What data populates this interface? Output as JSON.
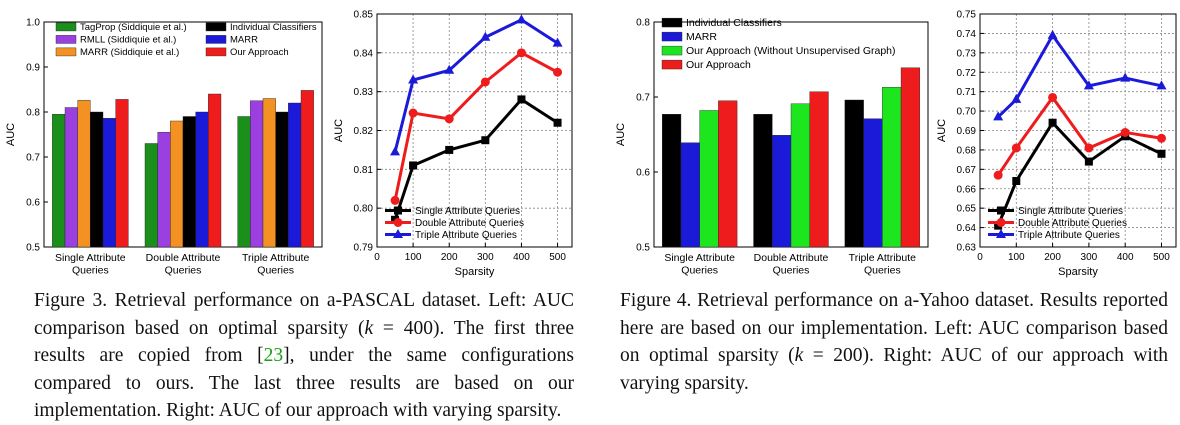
{
  "figures": [
    {
      "caption": {
        "lead": "Figure 3. Retrieval performance on a-PASCAL dataset. Left: AUC comparison based on optimal sparsity (",
        "k_sym": "k",
        "k_val": " = 400). The first three results are copied from [",
        "cite": "23",
        "rest": "], under the same configurations compared to ours. The last three results are based on our implementation. Right: AUC of our approach with varying sparsity."
      }
    },
    {
      "caption": {
        "lead": "Figure 4. Retrieval performance on a-Yahoo dataset. Results reported here are based on our implementation. Left: AUC comparison based on optimal sparsity (",
        "k_sym": "k",
        "k_val": " = 200). Right: AUC of our approach with varying sparsity."
      }
    }
  ],
  "chart_data": [
    {
      "id": "f3-bar",
      "type": "bar",
      "title": "",
      "xlabel": "",
      "ylabel": "AUC",
      "ylim": [
        0.5,
        1.0
      ],
      "yticks": [
        "0.5",
        "0.6",
        "0.7",
        "0.8",
        "0.9",
        "1.0"
      ],
      "categories": [
        [
          "Single Attribute",
          "Queries"
        ],
        [
          "Double Attribute",
          "Queries"
        ],
        [
          "Triple Attribute",
          "Queries"
        ]
      ],
      "legend_placement": "top",
      "series": [
        {
          "name": "TagProp (Siddiquie et al.)",
          "color": "#1a8f1a",
          "values": [
            0.795,
            0.73,
            0.79
          ]
        },
        {
          "name": "RMLL (Siddiquie et al.)",
          "color": "#9b3fe0",
          "values": [
            0.81,
            0.755,
            0.825
          ]
        },
        {
          "name": "MARR (Siddiquie et al.)",
          "color": "#f39222",
          "values": [
            0.826,
            0.78,
            0.83
          ]
        },
        {
          "name": "Individual Classifiers",
          "color": "#000000",
          "values": [
            0.8,
            0.79,
            0.8
          ]
        },
        {
          "name": "MARR",
          "color": "#1a1ad8",
          "values": [
            0.786,
            0.8,
            0.82
          ]
        },
        {
          "name": "Our Approach",
          "color": "#ee1c1c",
          "values": [
            0.828,
            0.84,
            0.848
          ]
        }
      ]
    },
    {
      "id": "f3-line",
      "type": "line",
      "title": "",
      "xlabel": "Sparsity",
      "ylabel": "AUC",
      "xlim": [
        0,
        540
      ],
      "ylim": [
        0.79,
        0.85
      ],
      "xticks": [
        "0",
        "100",
        "200",
        "300",
        "400",
        "500"
      ],
      "yticks": [
        "0.79",
        "0.80",
        "0.81",
        "0.82",
        "0.83",
        "0.84",
        "0.85"
      ],
      "x": [
        50,
        100,
        200,
        300,
        400,
        500
      ],
      "grid": true,
      "legend_placement": "bottom-right",
      "series": [
        {
          "name": "Single Attribute Queries",
          "color": "#000000",
          "marker": "square",
          "values": [
            0.797,
            0.811,
            0.815,
            0.8175,
            0.828,
            0.822
          ]
        },
        {
          "name": "Double Attribute Queries",
          "color": "#ee1c1c",
          "marker": "circle",
          "values": [
            0.802,
            0.8245,
            0.823,
            0.8325,
            0.84,
            0.835
          ]
        },
        {
          "name": "Triple Attribute Queries",
          "color": "#1a1ad8",
          "marker": "triangle",
          "values": [
            0.8145,
            0.833,
            0.8355,
            0.844,
            0.8485,
            0.8425
          ]
        }
      ]
    },
    {
      "id": "f4-bar",
      "type": "bar",
      "title": "",
      "xlabel": "",
      "ylabel": "AUC",
      "ylim": [
        0.5,
        0.8
      ],
      "yticks": [
        "0.5",
        "0.6",
        "0.7",
        "0.8"
      ],
      "categories": [
        [
          "Single Attribute",
          "Queries"
        ],
        [
          "Double Attribute",
          "Queries"
        ],
        [
          "Triple Attribute",
          "Queries"
        ]
      ],
      "legend_placement": "top-left",
      "series": [
        {
          "name": "Individual Classifiers",
          "color": "#000000",
          "values": [
            0.677,
            0.677,
            0.696
          ]
        },
        {
          "name": "MARR",
          "color": "#1a1ad8",
          "values": [
            0.639,
            0.649,
            0.671
          ]
        },
        {
          "name": "Our Approach (Without Unsupervised Graph)",
          "color": "#1ee61e",
          "values": [
            0.682,
            0.691,
            0.713
          ]
        },
        {
          "name": "Our Approach",
          "color": "#ee1c1c",
          "values": [
            0.695,
            0.707,
            0.739
          ]
        }
      ]
    },
    {
      "id": "f4-line",
      "type": "line",
      "title": "",
      "xlabel": "Sparsity",
      "ylabel": "AUC",
      "xlim": [
        0,
        540
      ],
      "ylim": [
        0.63,
        0.75
      ],
      "xticks": [
        "0",
        "100",
        "200",
        "300",
        "400",
        "500"
      ],
      "yticks": [
        "0.63",
        "0.64",
        "0.65",
        "0.66",
        "0.67",
        "0.68",
        "0.69",
        "0.70",
        "0.71",
        "0.72",
        "0.73",
        "0.74",
        "0.75"
      ],
      "x": [
        50,
        100,
        200,
        300,
        400,
        500
      ],
      "grid": true,
      "legend_placement": "bottom-right",
      "series": [
        {
          "name": "Single Attribute Queries",
          "color": "#000000",
          "marker": "square",
          "values": [
            0.641,
            0.664,
            0.694,
            0.674,
            0.687,
            0.678
          ]
        },
        {
          "name": "Double Attribute Queries",
          "color": "#ee1c1c",
          "marker": "circle",
          "values": [
            0.667,
            0.681,
            0.707,
            0.681,
            0.689,
            0.686
          ]
        },
        {
          "name": "Triple Attribute Queries",
          "color": "#1a1ad8",
          "marker": "triangle",
          "values": [
            0.697,
            0.706,
            0.739,
            0.713,
            0.717,
            0.713
          ]
        }
      ]
    }
  ]
}
